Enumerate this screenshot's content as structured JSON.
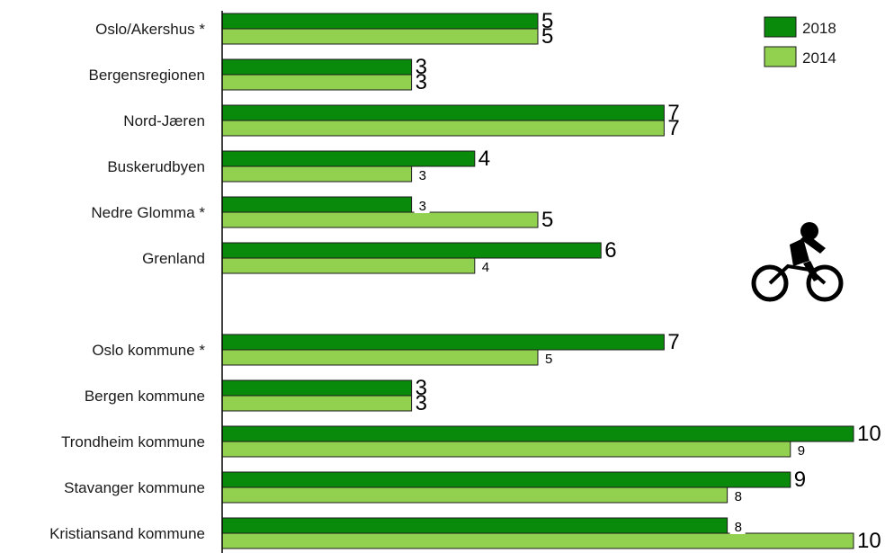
{
  "chart_data": {
    "type": "bar",
    "orientation": "horizontal",
    "categories": [
      "Oslo/Akershus *",
      "Bergensregionen",
      "Nord-Jæren",
      "Buskerudbyen",
      "Nedre Glomma *",
      "Grenland",
      "Oslo kommune *",
      "Bergen kommune",
      "Trondheim kommune",
      "Stavanger kommune",
      "Kristiansand kommune"
    ],
    "series": [
      {
        "name": "2018",
        "color": "#0a8a0a",
        "values": [
          5,
          3,
          7,
          4,
          3,
          6,
          7,
          3,
          10,
          9,
          8
        ]
      },
      {
        "name": "2014",
        "color": "#92d050",
        "values": [
          5,
          3,
          7,
          3,
          5,
          4,
          5,
          3,
          9,
          8,
          10
        ]
      }
    ],
    "xlim": [
      0,
      10
    ],
    "grid": false,
    "legend_position": "top-right",
    "title": "",
    "xlabel": "",
    "ylabel": ""
  },
  "legend": {
    "items": [
      "2018",
      "2014"
    ]
  },
  "icons": {
    "bicycle": "cyclist-icon"
  }
}
